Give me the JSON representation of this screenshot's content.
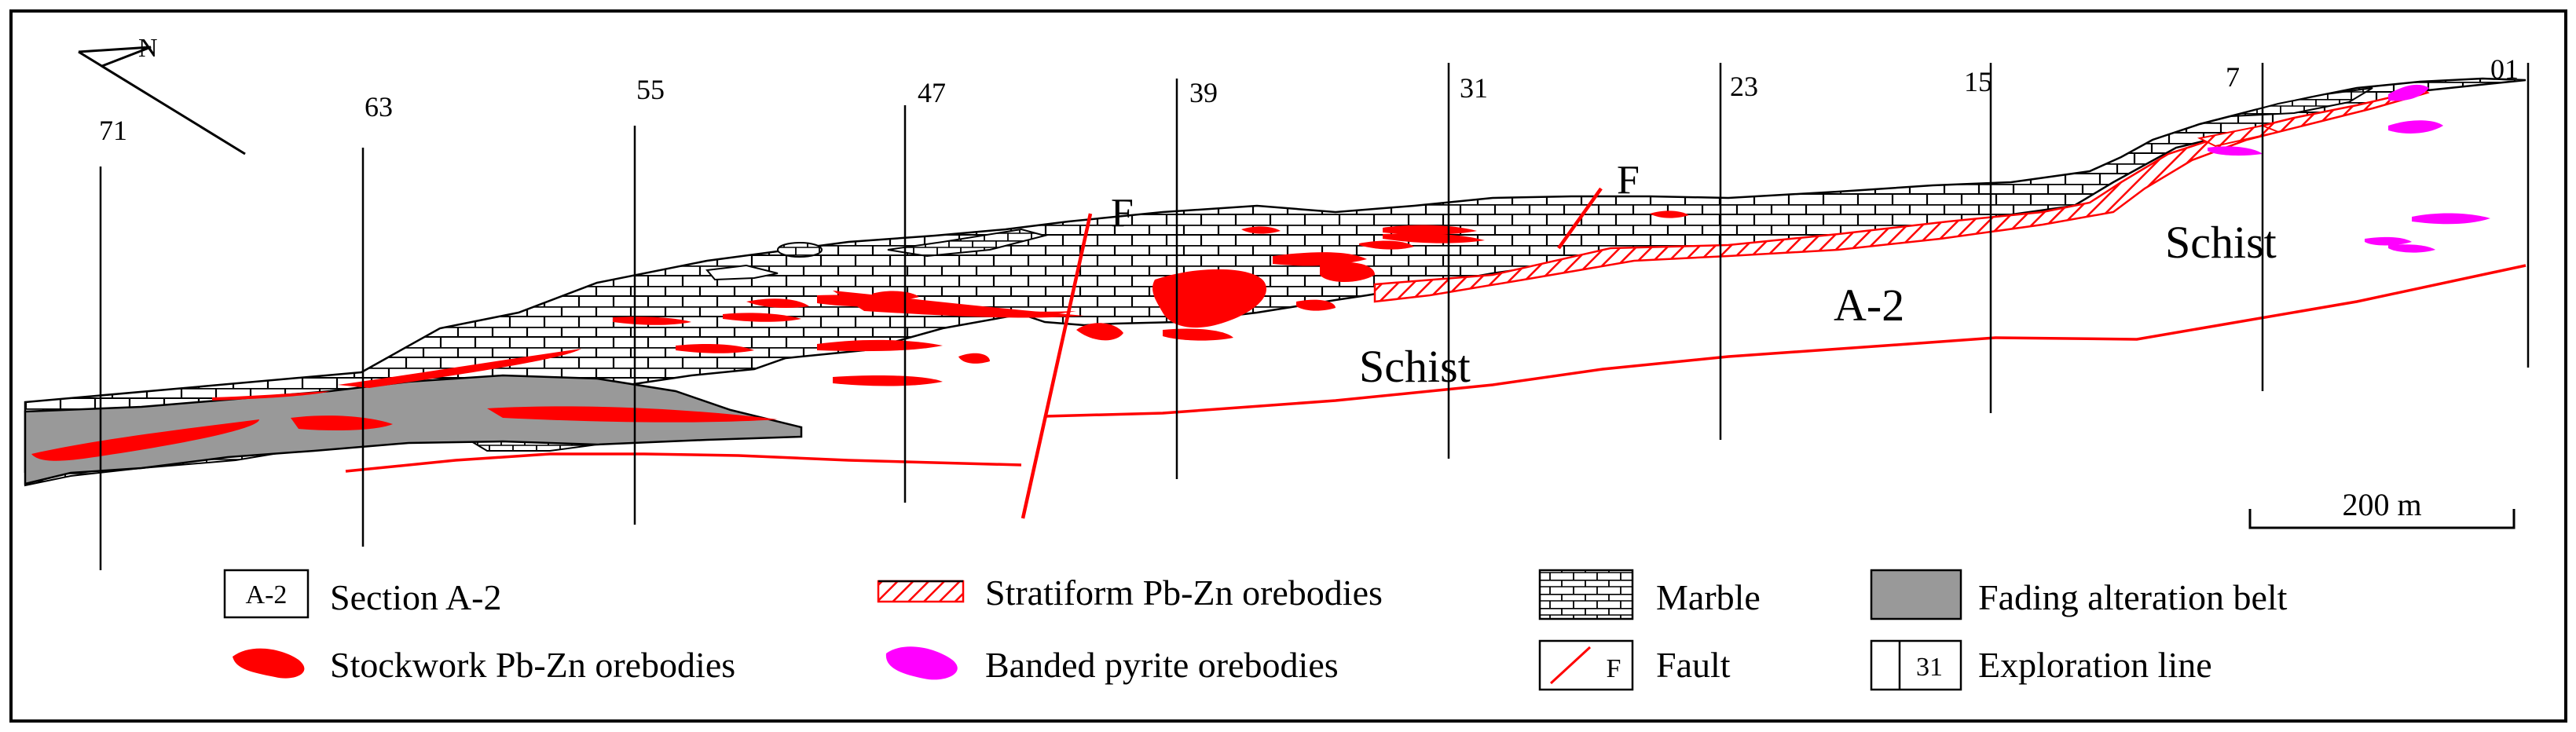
{
  "compass": {
    "label": "N",
    "icon": "north-arrow-icon"
  },
  "exploration_lines": [
    "71",
    "63",
    "55",
    "47",
    "39",
    "31",
    "23",
    "15",
    "7",
    "01"
  ],
  "section_labels": [
    {
      "id": "schist-west",
      "text": "Schist"
    },
    {
      "id": "schist-east",
      "text": "Schist"
    },
    {
      "id": "section",
      "text": "A-2"
    }
  ],
  "fault_labels": [
    "F",
    "F"
  ],
  "scale_bar": {
    "label": "200 m"
  },
  "legend": {
    "section": {
      "box_text": "A-2",
      "label": "Section A-2"
    },
    "stockwork": {
      "label": "Stockwork Pb-Zn orebodies",
      "icon": "red-blob-icon"
    },
    "stratiform": {
      "label": "Stratiform Pb-Zn orebodies",
      "icon": "hatched-band-icon"
    },
    "banded_pyrite": {
      "label": "Banded pyrite orebodies",
      "icon": "magenta-blob-icon"
    },
    "marble": {
      "label": "Marble",
      "icon": "brick-pattern-icon"
    },
    "fault": {
      "box_text": "F",
      "label": "Fault",
      "icon": "fault-line-icon"
    },
    "fading_alteration": {
      "label": "Fading alteration belt",
      "icon": "gray-fill-icon"
    },
    "exploration_line": {
      "box_text": "31",
      "label": "Exploration line"
    }
  },
  "colors": {
    "ore": "#ff0000",
    "pyrite": "#ff00ff",
    "alteration": "#999999",
    "line": "#000000",
    "background": "#ffffff"
  }
}
